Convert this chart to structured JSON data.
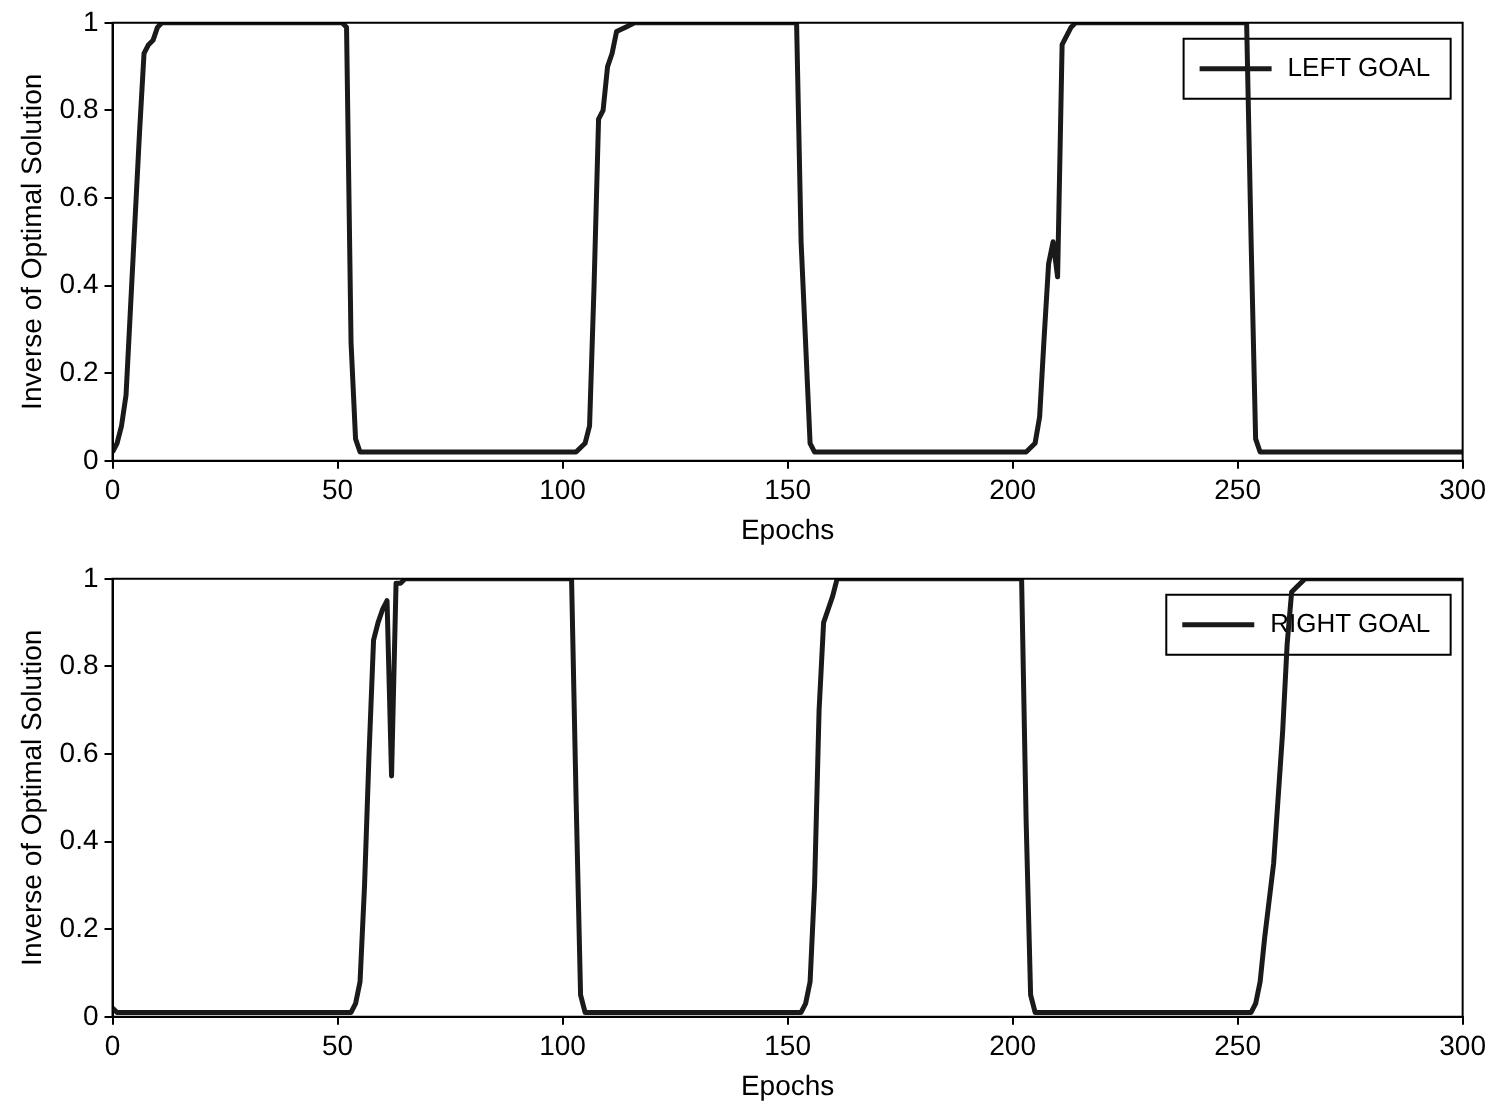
{
  "chart_data": [
    {
      "type": "line",
      "xlabel": "Epochs",
      "ylabel": "Inverse of Optimal Solution",
      "xlim": [
        0,
        300
      ],
      "xticks": [
        0,
        50,
        100,
        150,
        200,
        250,
        300
      ],
      "ylim": [
        0,
        1
      ],
      "yticks": [
        0,
        0.2,
        0.4,
        0.6,
        0.8,
        1
      ],
      "grid": false,
      "legend": "top right",
      "marker": "none",
      "line_style": "solid",
      "series": [
        {
          "name": "LEFT GOAL",
          "color": "#1a1a1a",
          "x": [
            0,
            1,
            2,
            3,
            4,
            5,
            6,
            7,
            8,
            9,
            10,
            11,
            51,
            52,
            53,
            54,
            55,
            103,
            105,
            106,
            107,
            108,
            109,
            110,
            111,
            112,
            114,
            116,
            152,
            153,
            155,
            156,
            203,
            205,
            206,
            207,
            208,
            209,
            210,
            211,
            212,
            213,
            214,
            252,
            253,
            254,
            255,
            300
          ],
          "values": [
            0.02,
            0.04,
            0.08,
            0.15,
            0.35,
            0.55,
            0.75,
            0.93,
            0.95,
            0.96,
            0.99,
            1,
            1,
            0.99,
            0.27,
            0.05,
            0.02,
            0.02,
            0.04,
            0.08,
            0.4,
            0.78,
            0.8,
            0.9,
            0.93,
            0.98,
            0.99,
            1,
            1,
            0.5,
            0.04,
            0.02,
            0.02,
            0.04,
            0.1,
            0.28,
            0.45,
            0.5,
            0.42,
            0.95,
            0.97,
            0.99,
            1,
            1,
            0.5,
            0.05,
            0.02,
            0.02
          ]
        }
      ]
    },
    {
      "type": "line",
      "xlabel": "Epochs",
      "ylabel": "Inverse of Optimal Solution",
      "xlim": [
        0,
        300
      ],
      "xticks": [
        0,
        50,
        100,
        150,
        200,
        250,
        300
      ],
      "ylim": [
        0,
        1
      ],
      "yticks": [
        0,
        0.2,
        0.4,
        0.6,
        0.8,
        1
      ],
      "grid": false,
      "legend": "top right",
      "marker": "none",
      "line_style": "solid",
      "series": [
        {
          "name": "RIGHT GOAL",
          "color": "#1a1a1a",
          "x": [
            0,
            1,
            53,
            54,
            55,
            56,
            57,
            58,
            59,
            60,
            61,
            62,
            63,
            64,
            65,
            102,
            103,
            104,
            105,
            153,
            154,
            155,
            156,
            157,
            158,
            159,
            160,
            161,
            202,
            203,
            204,
            205,
            253,
            254,
            255,
            256,
            258,
            259,
            260,
            261,
            262,
            263,
            265,
            300
          ],
          "values": [
            0.02,
            0.01,
            0.01,
            0.03,
            0.08,
            0.3,
            0.6,
            0.86,
            0.9,
            0.93,
            0.95,
            0.55,
            0.99,
            0.99,
            1,
            1,
            0.5,
            0.05,
            0.01,
            0.01,
            0.03,
            0.08,
            0.3,
            0.7,
            0.9,
            0.93,
            0.96,
            1,
            1,
            0.45,
            0.05,
            0.01,
            0.01,
            0.03,
            0.08,
            0.18,
            0.35,
            0.5,
            0.65,
            0.85,
            0.97,
            0.98,
            1,
            1
          ]
        }
      ]
    }
  ]
}
